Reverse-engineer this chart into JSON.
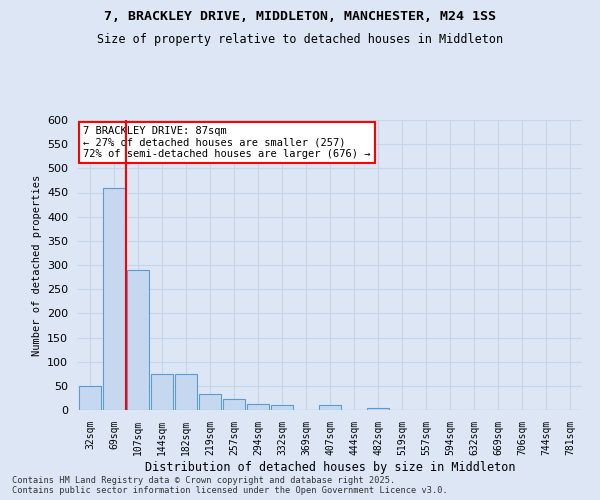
{
  "title_line1": "7, BRACKLEY DRIVE, MIDDLETON, MANCHESTER, M24 1SS",
  "title_line2": "Size of property relative to detached houses in Middleton",
  "xlabel": "Distribution of detached houses by size in Middleton",
  "ylabel": "Number of detached properties",
  "footer_line1": "Contains HM Land Registry data © Crown copyright and database right 2025.",
  "footer_line2": "Contains public sector information licensed under the Open Government Licence v3.0.",
  "bins": [
    "32sqm",
    "69sqm",
    "107sqm",
    "144sqm",
    "182sqm",
    "219sqm",
    "257sqm",
    "294sqm",
    "332sqm",
    "369sqm",
    "407sqm",
    "444sqm",
    "482sqm",
    "519sqm",
    "557sqm",
    "594sqm",
    "632sqm",
    "669sqm",
    "706sqm",
    "744sqm",
    "781sqm"
  ],
  "values": [
    50,
    460,
    290,
    75,
    75,
    33,
    22,
    12,
    10,
    0,
    10,
    0,
    5,
    0,
    0,
    0,
    0,
    0,
    0,
    0,
    0
  ],
  "bar_color": "#c5d8f0",
  "bar_edge_color": "#5b9bd5",
  "grid_color": "#c8d4e8",
  "bg_color": "#dce6f5",
  "vline_color": "red",
  "vline_position": 1.5,
  "annotation_text": "7 BRACKLEY DRIVE: 87sqm\n← 27% of detached houses are smaller (257)\n72% of semi-detached houses are larger (676) →",
  "annotation_box_color": "white",
  "annotation_border_color": "red",
  "ylim": [
    0,
    600
  ],
  "yticks": [
    0,
    50,
    100,
    150,
    200,
    250,
    300,
    350,
    400,
    450,
    500,
    550,
    600
  ]
}
